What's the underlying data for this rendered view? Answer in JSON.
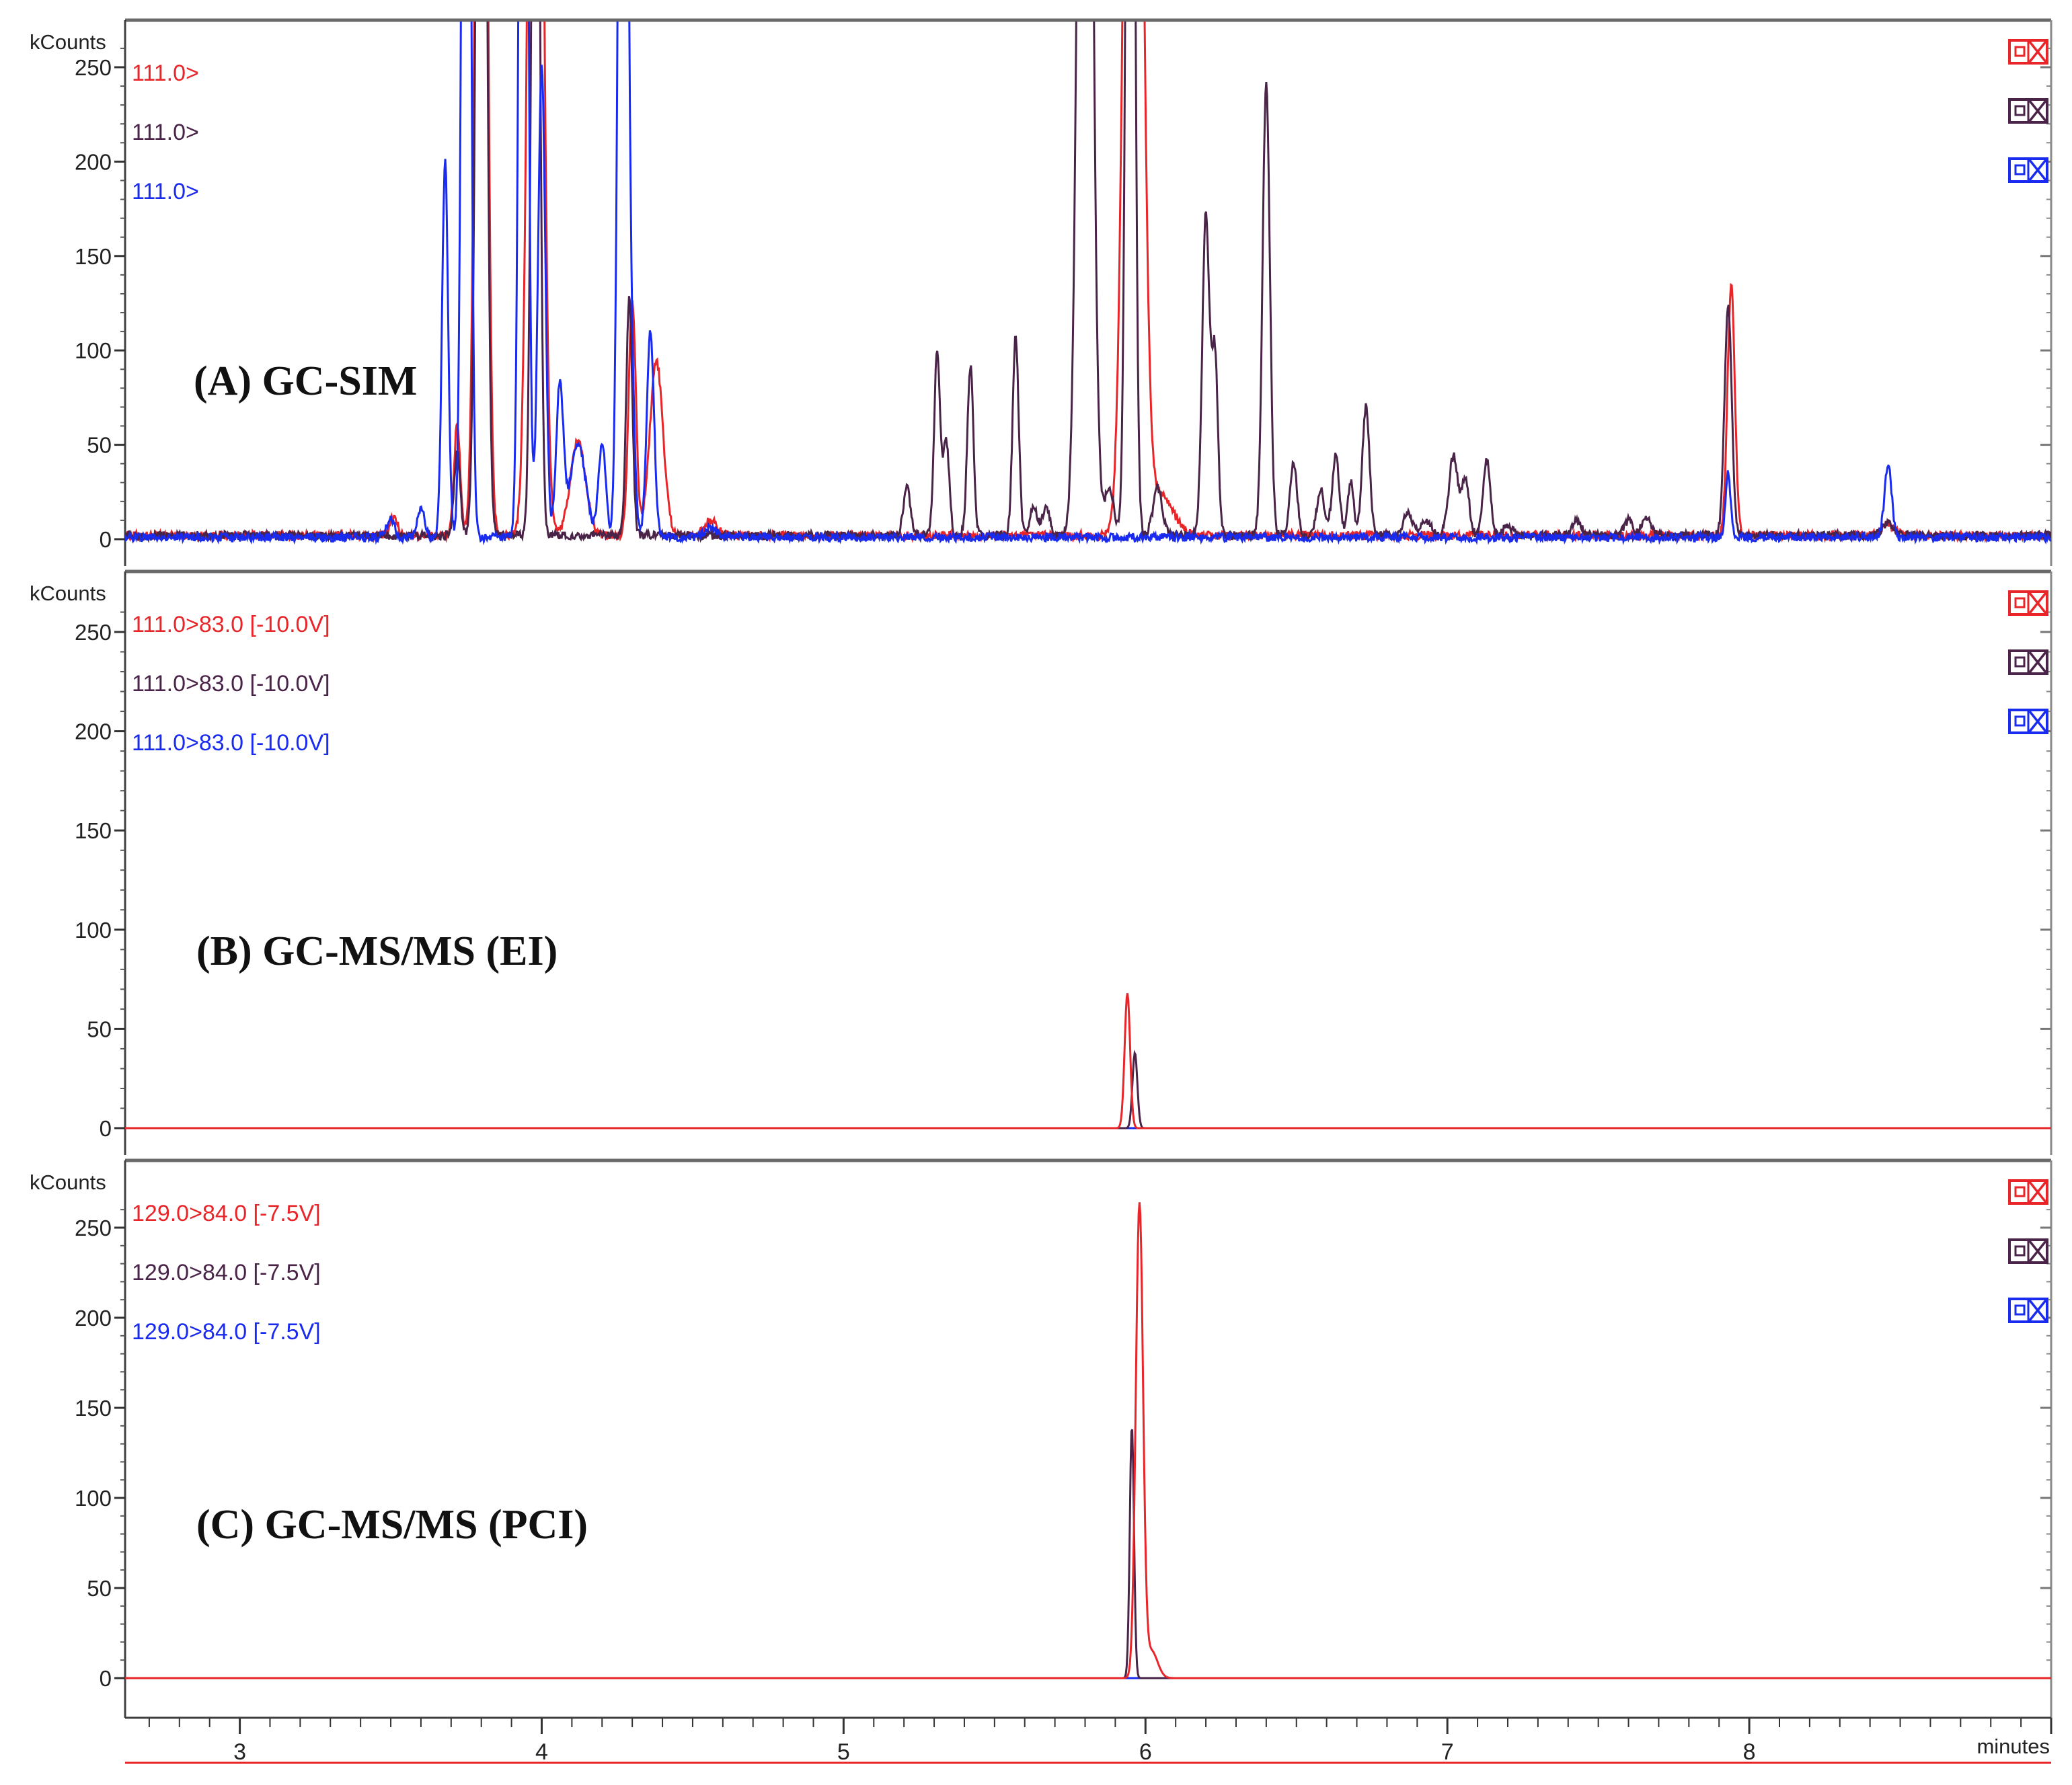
{
  "x_axis": {
    "label": "minutes",
    "range": [
      2.62,
      9.0
    ],
    "ticks": [
      3,
      4,
      5,
      6,
      7,
      8
    ],
    "tick_labels": [
      "3",
      "4",
      "5",
      "6",
      "7",
      "8"
    ]
  },
  "colors": {
    "red": "#e8262a",
    "purple": "#4a2448",
    "blue": "#1a2bf0",
    "axis": "#404040"
  },
  "chart_data": [
    {
      "type": "line",
      "title": "(A) GC-SIM",
      "y_unit_label": "kCounts",
      "ylim": [
        -8,
        272
      ],
      "y_ticks": [
        0,
        50,
        100,
        150,
        200,
        250
      ],
      "y_tick_labels": [
        "0",
        "50",
        "100",
        "150",
        "200",
        "250"
      ],
      "legend": [
        "111.0>",
        "111.0>",
        "111.0>"
      ],
      "series": [
        {
          "color": "red",
          "baseline": 2,
          "noise": 2.2,
          "peaks": [
            [
              3.51,
              10,
              0.012
            ],
            [
              3.72,
              60,
              0.01
            ],
            [
              3.8,
              800,
              0.016
            ],
            [
              3.98,
              800,
              0.02
            ],
            [
              4.12,
              50,
              0.025
            ],
            [
              4.3,
              125,
              0.012
            ],
            [
              4.38,
              92,
              0.022
            ],
            [
              4.56,
              8,
              0.02
            ],
            [
              5.96,
              800,
              0.025
            ],
            [
              6.05,
              22,
              0.04
            ],
            [
              7.94,
              133,
              0.012
            ],
            [
              8.46,
              6,
              0.02
            ]
          ]
        },
        {
          "color": "purple",
          "baseline": 2,
          "noise": 2.2,
          "peaks": [
            [
              3.72,
              45,
              0.01
            ],
            [
              3.8,
              800,
              0.014
            ],
            [
              3.98,
              600,
              0.012
            ],
            [
              4.29,
              125,
              0.01
            ],
            [
              5.21,
              25,
              0.012
            ],
            [
              5.31,
              98,
              0.01
            ],
            [
              5.34,
              50,
              0.01
            ],
            [
              5.42,
              90,
              0.01
            ],
            [
              5.57,
              105,
              0.01
            ],
            [
              5.63,
              15,
              0.012
            ],
            [
              5.67,
              15,
              0.012
            ],
            [
              5.8,
              800,
              0.02
            ],
            [
              5.88,
              25,
              0.015
            ],
            [
              5.95,
              800,
              0.012
            ],
            [
              6.04,
              25,
              0.015
            ],
            [
              6.2,
              170,
              0.012
            ],
            [
              6.23,
              95,
              0.01
            ],
            [
              6.4,
              240,
              0.012
            ],
            [
              6.49,
              38,
              0.012
            ],
            [
              6.58,
              25,
              0.012
            ],
            [
              6.63,
              42,
              0.012
            ],
            [
              6.68,
              28,
              0.01
            ],
            [
              6.73,
              68,
              0.012
            ],
            [
              6.87,
              12,
              0.015
            ],
            [
              6.93,
              8,
              0.015
            ],
            [
              7.02,
              42,
              0.015
            ],
            [
              7.06,
              30,
              0.012
            ],
            [
              7.13,
              40,
              0.012
            ],
            [
              7.2,
              5,
              0.015
            ],
            [
              7.43,
              8,
              0.015
            ],
            [
              7.6,
              8,
              0.015
            ],
            [
              7.66,
              10,
              0.015
            ],
            [
              7.93,
              122,
              0.012
            ],
            [
              8.46,
              6,
              0.02
            ]
          ]
        },
        {
          "color": "blue",
          "baseline": 1,
          "noise": 2.2,
          "peaks": [
            [
              3.5,
              10,
              0.012
            ],
            [
              3.6,
              15,
              0.012
            ],
            [
              3.68,
              200,
              0.01
            ],
            [
              3.75,
              800,
              0.012
            ],
            [
              3.94,
              800,
              0.012
            ],
            [
              4.0,
              250,
              0.012
            ],
            [
              4.06,
              80,
              0.012
            ],
            [
              4.12,
              50,
              0.025
            ],
            [
              4.2,
              50,
              0.012
            ],
            [
              4.27,
              800,
              0.013
            ],
            [
              4.3,
              60,
              0.01
            ],
            [
              4.36,
              110,
              0.012
            ],
            [
              4.56,
              5,
              0.02
            ],
            [
              7.93,
              35,
              0.008
            ],
            [
              8.46,
              38,
              0.012
            ]
          ]
        }
      ]
    },
    {
      "type": "line",
      "title": "(B) GC-MS/MS (EI)",
      "y_unit_label": "kCounts",
      "ylim": [
        -8,
        272
      ],
      "y_ticks": [
        0,
        50,
        100,
        150,
        200,
        250
      ],
      "y_tick_labels": [
        "0",
        "50",
        "100",
        "150",
        "200",
        "250"
      ],
      "legend": [
        "111.0>83.0 [-10.0V]",
        "111.0>83.0 [-10.0V]",
        "111.0>83.0 [-10.0V]"
      ],
      "series": [
        {
          "color": "red",
          "baseline": 0,
          "noise": 0,
          "peaks": [
            [
              5.94,
              68,
              0.009
            ]
          ]
        },
        {
          "color": "purple",
          "baseline": 0,
          "noise": 0,
          "peaks": [
            [
              5.965,
              38,
              0.008
            ]
          ]
        },
        {
          "color": "blue",
          "baseline": 0,
          "noise": 0,
          "peaks": []
        }
      ]
    },
    {
      "type": "line",
      "title": "(C) GC-MS/MS (PCI)",
      "y_unit_label": "kCounts",
      "ylim": [
        -8,
        272
      ],
      "y_ticks": [
        0,
        50,
        100,
        150,
        200,
        250
      ],
      "y_tick_labels": [
        "0",
        "50",
        "100",
        "150",
        "200",
        "250"
      ],
      "legend": [
        "129.0>84.0 [-7.5V]",
        "129.0>84.0 [-7.5V]",
        "129.0>84.0 [-7.5V]"
      ],
      "series": [
        {
          "color": "red",
          "baseline": 0,
          "noise": 0,
          "peaks": [
            [
              5.98,
              262,
              0.012
            ],
            [
              6.02,
              15,
              0.02
            ]
          ]
        },
        {
          "color": "purple",
          "baseline": 0,
          "noise": 0,
          "peaks": [
            [
              5.955,
              140,
              0.007
            ]
          ]
        },
        {
          "color": "blue",
          "baseline": 0,
          "noise": 0,
          "peaks": []
        }
      ]
    }
  ]
}
